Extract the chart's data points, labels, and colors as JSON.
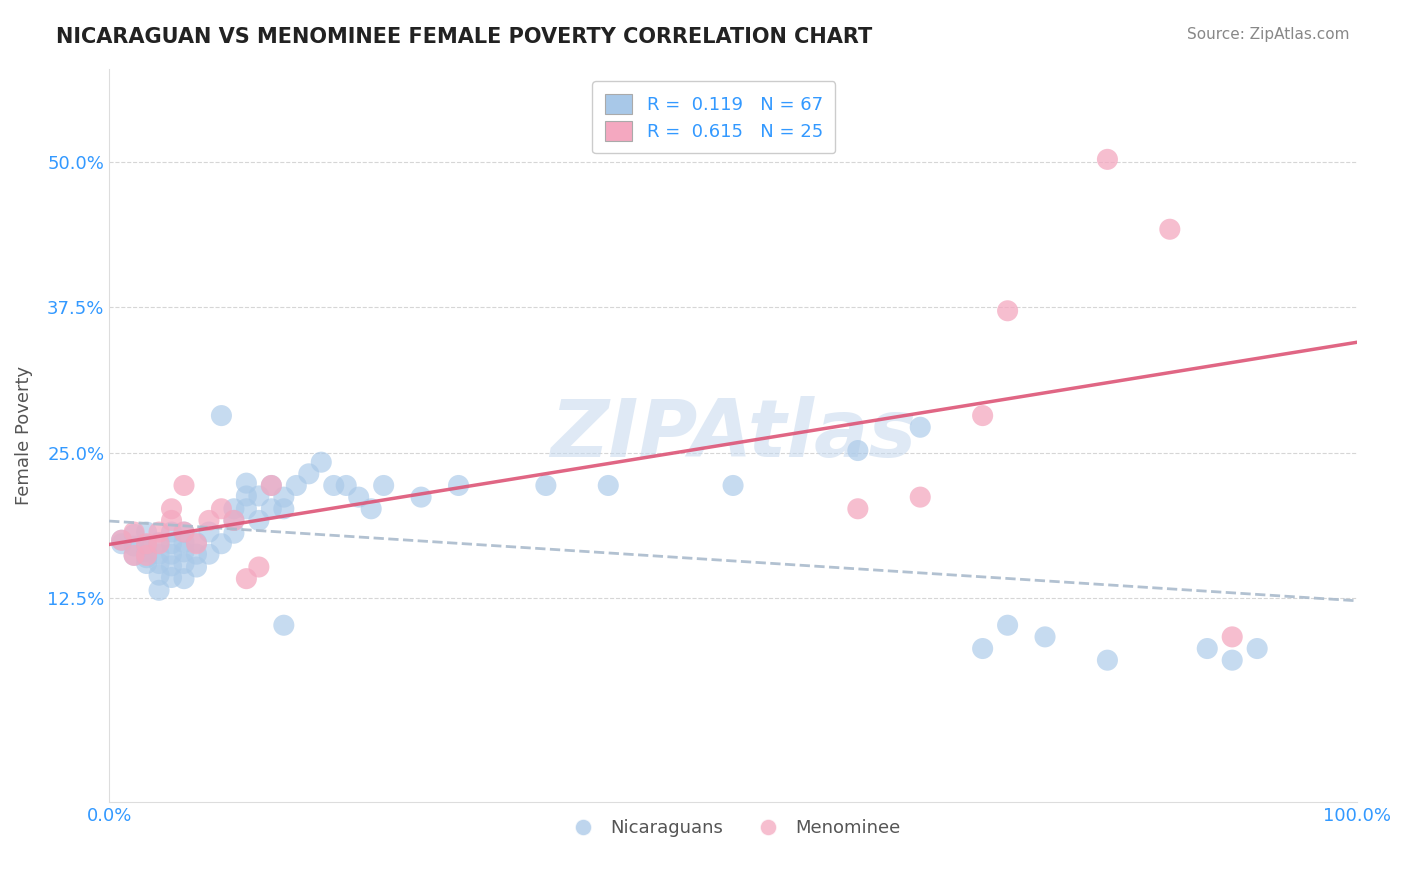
{
  "title": "NICARAGUAN VS MENOMINEE FEMALE POVERTY CORRELATION CHART",
  "source_text": "Source: ZipAtlas.com",
  "xlabel_nicaraguans": "Nicaraguans",
  "xlabel_menominee": "Menominee",
  "ylabel": "Female Poverty",
  "xlim": [
    0,
    1
  ],
  "ylim": [
    -0.05,
    0.58
  ],
  "xtick_labels": [
    "0.0%",
    "100.0%"
  ],
  "xtick_positions": [
    0,
    1
  ],
  "ytick_labels": [
    "12.5%",
    "25.0%",
    "37.5%",
    "50.0%"
  ],
  "ytick_positions": [
    0.125,
    0.25,
    0.375,
    0.5
  ],
  "r_nicaraguan": 0.119,
  "n_nicaraguan": 67,
  "r_menominee": 0.615,
  "n_menominee": 25,
  "blue_color": "#A8C8E8",
  "pink_color": "#F4A8C0",
  "blue_line_color": "#4466BB",
  "pink_line_color": "#DD5577",
  "blue_line_dash": "#AABBCC",
  "watermark": "ZIPAtlas",
  "background_color": "#FFFFFF",
  "grid_color": "#CCCCCC",
  "blue_scatter": [
    [
      0.01,
      0.175
    ],
    [
      0.01,
      0.172
    ],
    [
      0.02,
      0.17
    ],
    [
      0.02,
      0.18
    ],
    [
      0.02,
      0.162
    ],
    [
      0.03,
      0.182
    ],
    [
      0.03,
      0.171
    ],
    [
      0.03,
      0.165
    ],
    [
      0.03,
      0.16
    ],
    [
      0.03,
      0.155
    ],
    [
      0.04,
      0.173
    ],
    [
      0.04,
      0.163
    ],
    [
      0.04,
      0.155
    ],
    [
      0.04,
      0.145
    ],
    [
      0.04,
      0.132
    ],
    [
      0.05,
      0.182
    ],
    [
      0.05,
      0.172
    ],
    [
      0.05,
      0.163
    ],
    [
      0.05,
      0.153
    ],
    [
      0.05,
      0.143
    ],
    [
      0.06,
      0.182
    ],
    [
      0.06,
      0.173
    ],
    [
      0.06,
      0.165
    ],
    [
      0.06,
      0.155
    ],
    [
      0.06,
      0.142
    ],
    [
      0.07,
      0.173
    ],
    [
      0.07,
      0.163
    ],
    [
      0.07,
      0.152
    ],
    [
      0.08,
      0.182
    ],
    [
      0.08,
      0.163
    ],
    [
      0.09,
      0.172
    ],
    [
      0.09,
      0.282
    ],
    [
      0.1,
      0.202
    ],
    [
      0.1,
      0.192
    ],
    [
      0.1,
      0.181
    ],
    [
      0.11,
      0.224
    ],
    [
      0.11,
      0.213
    ],
    [
      0.11,
      0.202
    ],
    [
      0.12,
      0.213
    ],
    [
      0.12,
      0.192
    ],
    [
      0.13,
      0.222
    ],
    [
      0.13,
      0.202
    ],
    [
      0.14,
      0.212
    ],
    [
      0.14,
      0.202
    ],
    [
      0.14,
      0.102
    ],
    [
      0.15,
      0.222
    ],
    [
      0.16,
      0.232
    ],
    [
      0.17,
      0.242
    ],
    [
      0.18,
      0.222
    ],
    [
      0.19,
      0.222
    ],
    [
      0.2,
      0.212
    ],
    [
      0.21,
      0.202
    ],
    [
      0.22,
      0.222
    ],
    [
      0.25,
      0.212
    ],
    [
      0.28,
      0.222
    ],
    [
      0.35,
      0.222
    ],
    [
      0.4,
      0.222
    ],
    [
      0.5,
      0.222
    ],
    [
      0.6,
      0.252
    ],
    [
      0.65,
      0.272
    ],
    [
      0.7,
      0.082
    ],
    [
      0.72,
      0.102
    ],
    [
      0.75,
      0.092
    ],
    [
      0.8,
      0.072
    ],
    [
      0.88,
      0.082
    ],
    [
      0.9,
      0.072
    ],
    [
      0.92,
      0.082
    ]
  ],
  "pink_scatter": [
    [
      0.01,
      0.175
    ],
    [
      0.02,
      0.182
    ],
    [
      0.02,
      0.162
    ],
    [
      0.03,
      0.172
    ],
    [
      0.03,
      0.162
    ],
    [
      0.04,
      0.182
    ],
    [
      0.04,
      0.172
    ],
    [
      0.05,
      0.202
    ],
    [
      0.05,
      0.192
    ],
    [
      0.06,
      0.222
    ],
    [
      0.06,
      0.182
    ],
    [
      0.07,
      0.172
    ],
    [
      0.08,
      0.192
    ],
    [
      0.09,
      0.202
    ],
    [
      0.1,
      0.192
    ],
    [
      0.11,
      0.142
    ],
    [
      0.12,
      0.152
    ],
    [
      0.13,
      0.222
    ],
    [
      0.6,
      0.202
    ],
    [
      0.65,
      0.212
    ],
    [
      0.7,
      0.282
    ],
    [
      0.72,
      0.372
    ],
    [
      0.8,
      0.502
    ],
    [
      0.85,
      0.442
    ],
    [
      0.9,
      0.092
    ]
  ]
}
